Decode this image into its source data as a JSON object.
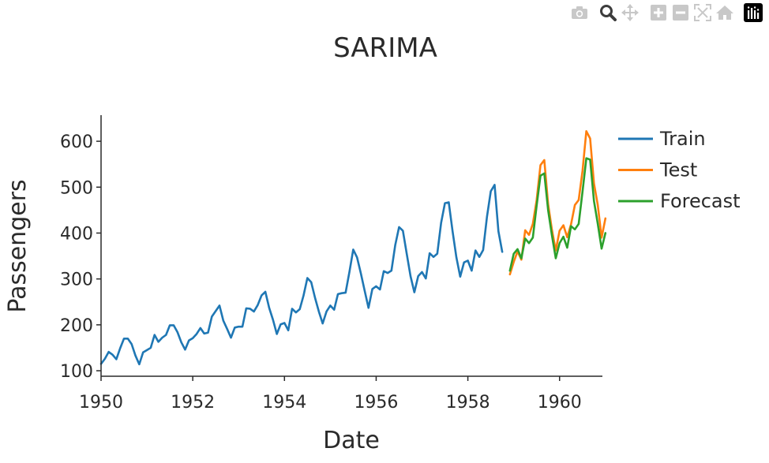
{
  "modebar": {
    "buttons": [
      {
        "name": "camera-icon",
        "color": "#c8c8c8"
      },
      {
        "name": "zoom-icon",
        "color": "#3c3c3c"
      },
      {
        "name": "pan-icon",
        "color": "#c8c8c8"
      },
      {
        "name": "zoom-in-icon",
        "color": "#c8c8c8"
      },
      {
        "name": "zoom-out-icon",
        "color": "#c8c8c8"
      },
      {
        "name": "autoscale-icon",
        "color": "#c8c8c8"
      },
      {
        "name": "home-icon",
        "color": "#c8c8c8"
      },
      {
        "name": "plotly-logo-icon",
        "color": "#000000"
      }
    ]
  },
  "chart_data": {
    "type": "line",
    "title": "SARIMA",
    "xlabel": "Date",
    "ylabel": "Passengers",
    "xlim": [
      1950,
      1960.9
    ],
    "ylim": [
      88,
      650
    ],
    "x_ticks": [
      1950,
      1952,
      1954,
      1956,
      1958,
      1960
    ],
    "y_ticks": [
      100,
      200,
      300,
      400,
      500,
      600
    ],
    "legend_position": "top-right",
    "grid": false,
    "series": [
      {
        "name": "Train",
        "color": "#1f77b4",
        "start": 1950.0,
        "step": 0.08333,
        "values": [
          115,
          126,
          141,
          135,
          125,
          149,
          170,
          170,
          158,
          133,
          114,
          140,
          145,
          150,
          178,
          163,
          172,
          178,
          199,
          199,
          184,
          162,
          146,
          166,
          171,
          180,
          193,
          181,
          183,
          218,
          230,
          242,
          209,
          191,
          172,
          194,
          196,
          196,
          236,
          235,
          229,
          243,
          264,
          272,
          237,
          211,
          180,
          201,
          204,
          188,
          235,
          227,
          234,
          264,
          302,
          293,
          259,
          229,
          203,
          229,
          242,
          233,
          267,
          269,
          270,
          315,
          364,
          347,
          312,
          274,
          237,
          278,
          284,
          277,
          317,
          313,
          318,
          374,
          413,
          405,
          355,
          306,
          271,
          306,
          315,
          301,
          356,
          348,
          355,
          422,
          465,
          467,
          404,
          347,
          305,
          336,
          340,
          318,
          362,
          348,
          363,
          435,
          491,
          505,
          404,
          359
        ]
      },
      {
        "name": "Test",
        "color": "#ff7f0e",
        "start": 1958.917,
        "step": 0.08333,
        "values": [
          310,
          337,
          360,
          342,
          406,
          396,
          420,
          472,
          548,
          559,
          463,
          407,
          362,
          405,
          417,
          391,
          419,
          461,
          472,
          535,
          622,
          606,
          508,
          461,
          390,
          432
        ]
      },
      {
        "name": "Forecast",
        "color": "#2ca02c",
        "start": 1958.917,
        "step": 0.08333,
        "values": [
          318,
          355,
          365,
          345,
          388,
          378,
          390,
          460,
          525,
          530,
          450,
          395,
          345,
          378,
          392,
          368,
          415,
          408,
          420,
          490,
          563,
          560,
          470,
          420,
          366,
          400
        ]
      }
    ]
  }
}
